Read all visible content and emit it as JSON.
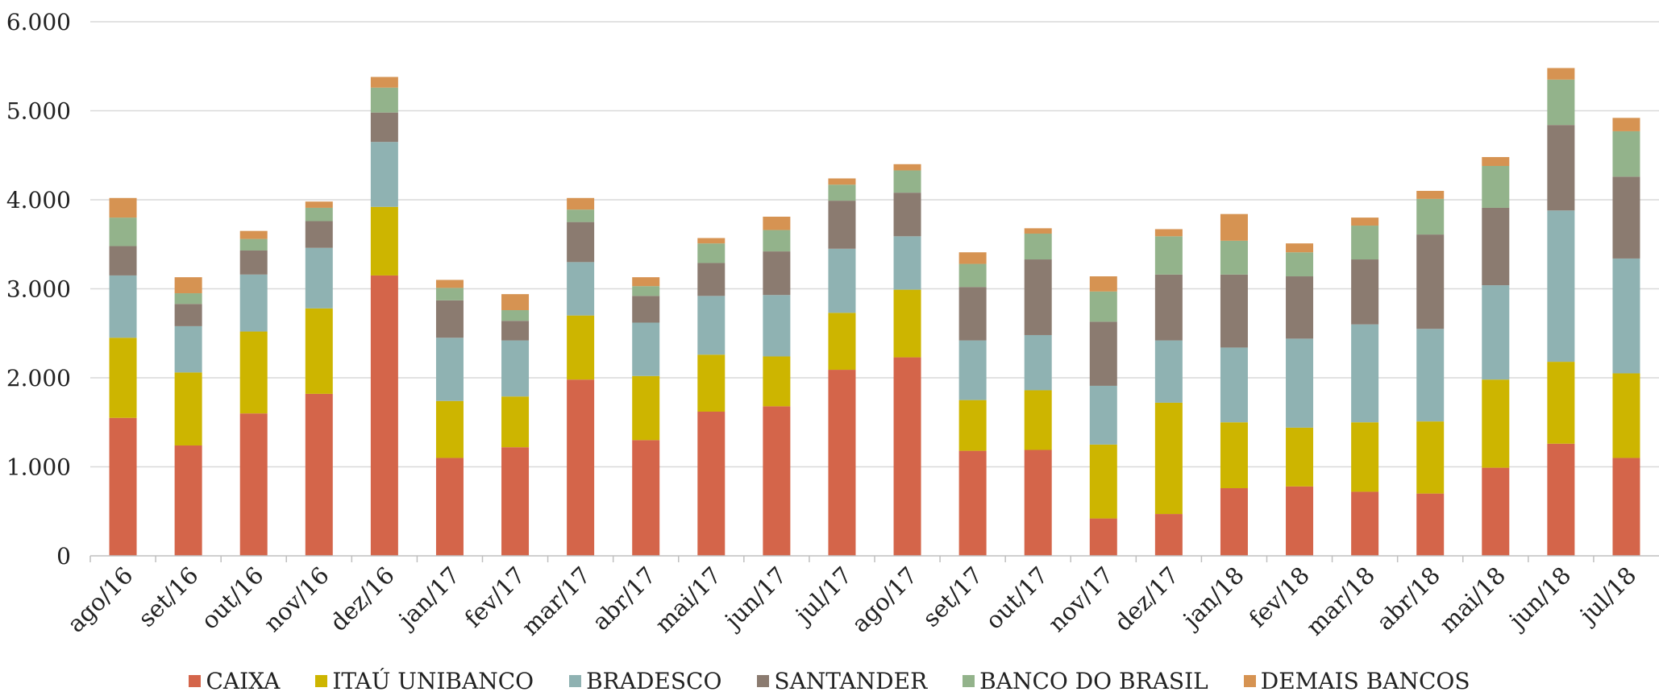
{
  "chart_data": {
    "type": "bar",
    "stacked": true,
    "title": "",
    "xlabel": "",
    "ylabel": "",
    "ylim": [
      0,
      6000
    ],
    "yticks": [
      "0",
      "1.000",
      "2.000",
      "3.000",
      "4.000",
      "5.000",
      "6.000"
    ],
    "ytick_values": [
      0,
      1000,
      2000,
      3000,
      4000,
      5000,
      6000
    ],
    "grid": true,
    "legend_position": "bottom",
    "categories": [
      "ago/16",
      "set/16",
      "out/16",
      "nov/16",
      "dez/16",
      "jan/17",
      "fev/17",
      "mar/17",
      "abr/17",
      "mai/17",
      "jun/17",
      "jul/17",
      "ago/17",
      "set/17",
      "out/17",
      "nov/17",
      "dez/17",
      "jan/18",
      "fev/18",
      "mar/18",
      "abr/18",
      "mai/18",
      "jun/18",
      "jul/18"
    ],
    "series": [
      {
        "name": "CAIXA",
        "color": "#D4654A",
        "values": [
          1550,
          1240,
          1600,
          1820,
          3150,
          1100,
          1220,
          1980,
          1300,
          1620,
          1680,
          2090,
          2230,
          1180,
          1190,
          420,
          470,
          760,
          780,
          720,
          700,
          990,
          1260,
          1100
        ]
      },
      {
        "name": "ITAÚ UNIBANCO",
        "color": "#CDB500",
        "values": [
          900,
          820,
          920,
          960,
          770,
          640,
          570,
          720,
          720,
          640,
          560,
          640,
          760,
          570,
          670,
          830,
          1250,
          740,
          660,
          780,
          810,
          990,
          920,
          950
        ]
      },
      {
        "name": "BRADESCO",
        "color": "#8FB2B2",
        "values": [
          700,
          520,
          640,
          680,
          730,
          710,
          630,
          600,
          600,
          660,
          690,
          720,
          600,
          670,
          620,
          660,
          700,
          840,
          1000,
          1100,
          1040,
          1060,
          1700,
          1290
        ]
      },
      {
        "name": "SANTANDER",
        "color": "#8B7B70",
        "values": [
          330,
          250,
          270,
          300,
          330,
          420,
          220,
          450,
          300,
          370,
          490,
          540,
          490,
          600,
          850,
          720,
          740,
          820,
          700,
          730,
          1060,
          870,
          960,
          920
        ]
      },
      {
        "name": "BANCO DO BRASIL",
        "color": "#93B38B",
        "values": [
          320,
          120,
          130,
          150,
          280,
          140,
          120,
          140,
          110,
          220,
          240,
          180,
          250,
          260,
          290,
          340,
          430,
          380,
          270,
          380,
          400,
          470,
          510,
          510
        ]
      },
      {
        "name": "DEMAIS BANCOS",
        "color": "#D69352",
        "values": [
          220,
          180,
          90,
          70,
          120,
          90,
          180,
          130,
          100,
          60,
          150,
          70,
          70,
          130,
          60,
          170,
          80,
          300,
          100,
          90,
          90,
          100,
          130,
          150
        ]
      }
    ]
  }
}
